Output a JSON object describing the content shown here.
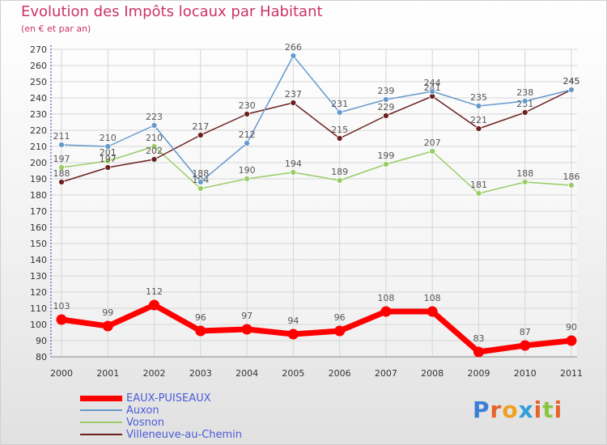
{
  "header": {
    "title": "Evolution des Impôts locaux par Habitant",
    "subtitle": "(en € et par an)"
  },
  "logo": {
    "text": "Proxiti"
  },
  "colors": {
    "title": "#cc3366",
    "axis_text": "#333333",
    "grid": "#d6d6d6",
    "legend_text": "#4a5ad8"
  },
  "chart_data": {
    "type": "line",
    "title": "Evolution des Impôts locaux par Habitant",
    "subtitle": "(en € et par an)",
    "xlabel": "",
    "ylabel": "",
    "categories": [
      "2000",
      "2001",
      "2002",
      "2003",
      "2004",
      "2005",
      "2006",
      "2007",
      "2008",
      "2009",
      "2010",
      "2011"
    ],
    "ylim": [
      80,
      270
    ],
    "yticks": [
      80,
      90,
      100,
      110,
      120,
      130,
      140,
      150,
      160,
      170,
      180,
      190,
      200,
      210,
      220,
      230,
      240,
      250,
      260,
      270
    ],
    "grid": true,
    "legend_position": "bottom-left",
    "series": [
      {
        "name": "EAUX-PUISEAUX",
        "color": "#ff0000",
        "values": [
          103,
          99,
          112,
          96,
          97,
          94,
          96,
          108,
          108,
          83,
          87,
          90
        ]
      },
      {
        "name": "Auxon",
        "color": "#6699cc",
        "values": [
          211,
          210,
          223,
          188,
          212,
          266,
          231,
          239,
          244,
          235,
          238,
          245
        ]
      },
      {
        "name": "Vosnon",
        "color": "#99cc66",
        "values": [
          197,
          201,
          210,
          184,
          190,
          194,
          189,
          199,
          207,
          181,
          188,
          186
        ]
      },
      {
        "name": "Villeneuve-au-Chemin",
        "color": "#6b1f1f",
        "values": [
          188,
          197,
          202,
          217,
          230,
          237,
          215,
          229,
          241,
          221,
          231,
          245
        ]
      }
    ]
  }
}
